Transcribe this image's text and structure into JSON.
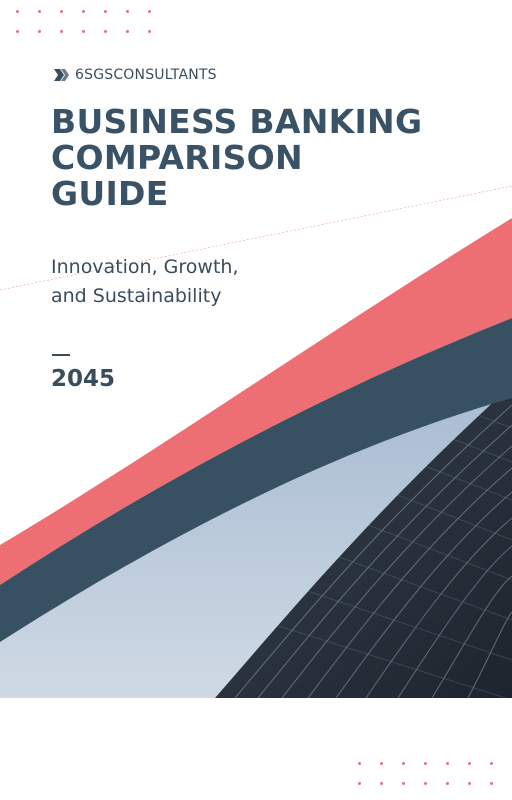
{
  "brand": {
    "name": "6SGSCONSULTANTS"
  },
  "cover": {
    "title_lines": [
      "BUSINESS BANKING",
      "COMPARISON",
      "GUIDE"
    ],
    "subtitle_lines": [
      "Innovation, Growth,",
      "and Sustainability"
    ],
    "year": "2045"
  },
  "colors": {
    "accent_coral": "#ee6f73",
    "navy": "#375062",
    "text_dark": "#3a4d5d",
    "sky": "#b8c7d8"
  },
  "icons": {
    "brand_logo": "double-chevron-logo-icon"
  }
}
